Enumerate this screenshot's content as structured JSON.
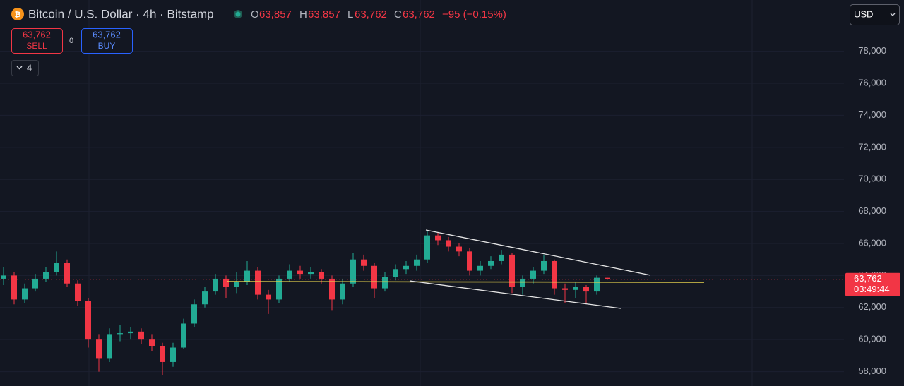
{
  "header": {
    "symbol": "Bitcoin / U.S. Dollar · 4h · Bitstamp",
    "o_label": "O",
    "o": "63,857",
    "h_label": "H",
    "h": "63,857",
    "l_label": "L",
    "l": "63,762",
    "c_label": "C",
    "c": "63,762",
    "change": "−95 (−0.15%)"
  },
  "trade": {
    "sell_price": "63,762",
    "sell": "SELL",
    "spread": "0",
    "buy_price": "63,762",
    "buy": "BUY"
  },
  "indicators": "4",
  "currency": "USD",
  "chart_data": {
    "type": "candlestick",
    "up_color": "#22ab94",
    "down_color": "#f23645",
    "ylim": [
      57100,
      81200
    ],
    "yticks": [
      {
        "value": 58000,
        "label": "58,000"
      },
      {
        "value": 60000,
        "label": "60,000"
      },
      {
        "value": 62000,
        "label": "62,000"
      },
      {
        "value": 64000,
        "label": "64,000"
      },
      {
        "value": 66000,
        "label": "66,000"
      },
      {
        "value": 68000,
        "label": "68,000"
      },
      {
        "value": 70000,
        "label": "70,000"
      },
      {
        "value": 72000,
        "label": "72,000"
      },
      {
        "value": 74000,
        "label": "74,000"
      },
      {
        "value": 76000,
        "label": "76,000"
      },
      {
        "value": 78000,
        "label": "78,000"
      }
    ],
    "grid": true,
    "last_price": {
      "value": 63762,
      "label": "63,762"
    },
    "countdown": "03:49:44",
    "ohlc": [
      [
        63800,
        64500,
        63400,
        64000
      ],
      [
        64000,
        64200,
        62200,
        62500
      ],
      [
        62500,
        63500,
        62300,
        63200
      ],
      [
        63200,
        64100,
        63000,
        63800
      ],
      [
        63800,
        64500,
        63600,
        64200
      ],
      [
        64200,
        65500,
        64000,
        64800
      ],
      [
        64800,
        65000,
        63300,
        63500
      ],
      [
        63500,
        63700,
        62100,
        62400
      ],
      [
        62400,
        62600,
        59500,
        60000
      ],
      [
        60000,
        60300,
        58000,
        58800
      ],
      [
        58800,
        60700,
        58600,
        60300
      ],
      [
        60300,
        60900,
        59900,
        60400
      ],
      [
        60400,
        60800,
        60000,
        60500
      ],
      [
        60500,
        60700,
        59700,
        60000
      ],
      [
        60000,
        60300,
        59300,
        59600
      ],
      [
        59600,
        59800,
        57800,
        58600
      ],
      [
        58600,
        59800,
        58300,
        59500
      ],
      [
        59500,
        61300,
        59400,
        61000
      ],
      [
        61000,
        62500,
        60800,
        62200
      ],
      [
        62200,
        63300,
        62000,
        63000
      ],
      [
        63000,
        64100,
        62800,
        63800
      ],
      [
        63800,
        64000,
        62600,
        63300
      ],
      [
        63300,
        64200,
        62900,
        63600
      ],
      [
        63600,
        64900,
        63400,
        64300
      ],
      [
        64300,
        64500,
        62500,
        62800
      ],
      [
        62800,
        63100,
        61600,
        62500
      ],
      [
        62500,
        64000,
        62300,
        63800
      ],
      [
        63800,
        64700,
        63600,
        64300
      ],
      [
        64300,
        64600,
        63800,
        64100
      ],
      [
        64100,
        64500,
        63800,
        64200
      ],
      [
        64200,
        64400,
        63500,
        63800
      ],
      [
        63800,
        64000,
        61800,
        62500
      ],
      [
        62500,
        63800,
        62200,
        63500
      ],
      [
        63500,
        65400,
        63300,
        65000
      ],
      [
        65000,
        65300,
        64300,
        64600
      ],
      [
        64600,
        64800,
        62600,
        63200
      ],
      [
        63200,
        64200,
        63000,
        63900
      ],
      [
        63900,
        64700,
        63700,
        64400
      ],
      [
        64400,
        64900,
        64100,
        64600
      ],
      [
        64600,
        65300,
        64300,
        65000
      ],
      [
        65000,
        66800,
        64800,
        66500
      ],
      [
        66500,
        66700,
        65900,
        66200
      ],
      [
        66200,
        66400,
        65500,
        65800
      ],
      [
        65800,
        66000,
        65200,
        65500
      ],
      [
        65500,
        65700,
        64000,
        64300
      ],
      [
        64300,
        64900,
        64000,
        64600
      ],
      [
        64600,
        65200,
        64400,
        64900
      ],
      [
        64900,
        65600,
        64700,
        65300
      ],
      [
        65300,
        65400,
        62900,
        63300
      ],
      [
        63300,
        64000,
        62800,
        63800
      ],
      [
        63800,
        64500,
        63500,
        64300
      ],
      [
        64300,
        65300,
        64100,
        64900
      ],
      [
        64900,
        65000,
        62800,
        63200
      ],
      [
        63200,
        63500,
        62300,
        63100
      ],
      [
        63100,
        63600,
        62600,
        63300
      ],
      [
        63300,
        63400,
        62300,
        63000
      ],
      [
        63000,
        64000,
        62800,
        63857
      ],
      [
        63857,
        63857,
        63762,
        63762
      ]
    ]
  }
}
